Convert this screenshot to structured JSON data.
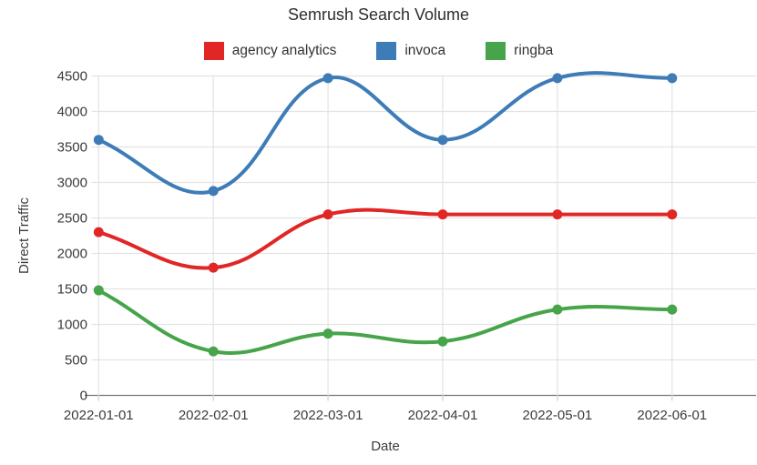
{
  "chart_data": {
    "type": "line",
    "title": "Semrush Search Volume",
    "xlabel": "Date",
    "ylabel": "Direct Traffic",
    "categories": [
      "2022-01-01",
      "2022-02-01",
      "2022-03-01",
      "2022-04-01",
      "2022-05-01",
      "2022-06-01"
    ],
    "series": [
      {
        "name": "agency analytics",
        "color": "#e12626",
        "values": [
          2300,
          1800,
          2550,
          2550,
          2550,
          2550
        ]
      },
      {
        "name": "invoca",
        "color": "#3e7cb7",
        "values": [
          3600,
          2880,
          4470,
          3600,
          4470,
          4470
        ]
      },
      {
        "name": "ringba",
        "color": "#47a44a",
        "values": [
          1480,
          620,
          870,
          760,
          1210,
          1210
        ]
      }
    ],
    "ylim": [
      0,
      4500
    ],
    "yticks": [
      0,
      500,
      1000,
      1500,
      2000,
      2500,
      3000,
      3500,
      4000,
      4500
    ],
    "grid": true,
    "legend_position": "top",
    "line_style": "smooth",
    "colors": {
      "grid": "#e3e3e3",
      "axis_line": "#757575",
      "tick_mark": "#cfcfcf",
      "tick_text": "#3b3b3b",
      "title_text": "#2d2d2d",
      "background": "#ffffff"
    }
  }
}
